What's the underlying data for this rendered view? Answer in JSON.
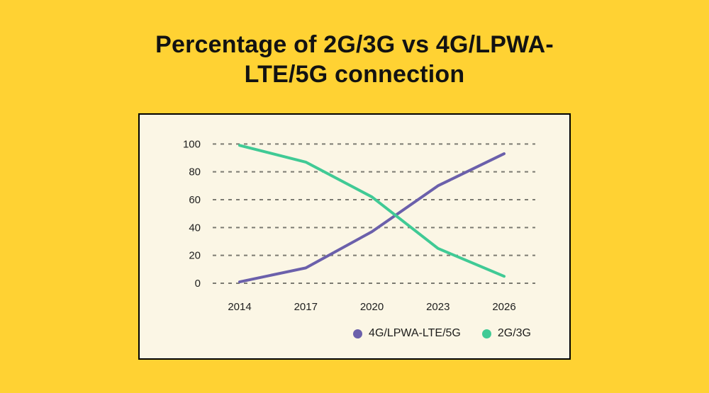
{
  "page": {
    "background_color": "#FFD233",
    "title_line1": "Percentage of 2G/3G vs 4G/LPWA-",
    "title_line2": "LTE/5G connection"
  },
  "chart_data": {
    "type": "line",
    "title": "Percentage of 2G/3G vs 4G/LPWA-LTE/5G connection",
    "categories": [
      "2014",
      "2017",
      "2020",
      "2023",
      "2026"
    ],
    "series": [
      {
        "name": "4G/LPWA-LTE/5G",
        "color": "#6B60AB",
        "values": [
          1,
          11,
          37,
          70,
          93
        ]
      },
      {
        "name": "2G/3G",
        "color": "#40CA95",
        "values": [
          99,
          87,
          62,
          25,
          5
        ]
      }
    ],
    "xlabel": "",
    "ylabel": "",
    "ylim": [
      0,
      100
    ],
    "yticks": [
      0,
      20,
      40,
      60,
      80,
      100
    ],
    "grid": "horizontal-dashed",
    "gridline_color": "#7C7B72",
    "label_color": "#1e1e1e",
    "panel_background": "#FBF6E5",
    "panel_border_color": "#000000",
    "legend_position": "bottom-right"
  }
}
